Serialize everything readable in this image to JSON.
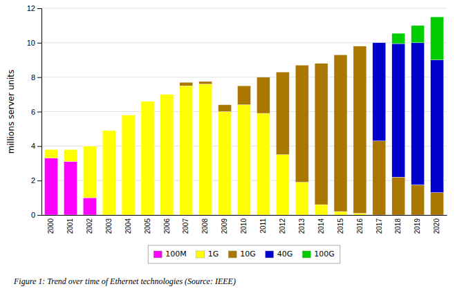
{
  "chart_data": {
    "type": "bar",
    "stacked": true,
    "ylabel": "millions server units",
    "caption": "Figure 1: Trend over time of Ethernet technologies (Source: IEEE)",
    "categories": [
      "2000",
      "2001",
      "2002",
      "2003",
      "2004",
      "2005",
      "2006",
      "2007",
      "2008",
      "2009",
      "2010",
      "2011",
      "2012",
      "2013",
      "2014",
      "2015",
      "2016",
      "2017",
      "2018",
      "2019",
      "2020"
    ],
    "series": [
      {
        "name": "100M",
        "color": "#FF00FF",
        "values": [
          3.3,
          3.1,
          1.0,
          0.0,
          0.0,
          0.0,
          0.0,
          0.0,
          0.0,
          0.0,
          0.0,
          0.0,
          0.0,
          0.0,
          0.0,
          0.0,
          0.0,
          0.0,
          0.0,
          0.0,
          0.0
        ]
      },
      {
        "name": "1G",
        "color": "#FFFF00",
        "values": [
          0.5,
          0.7,
          3.0,
          4.9,
          5.8,
          6.6,
          7.0,
          7.5,
          7.6,
          6.0,
          6.4,
          5.9,
          3.5,
          1.9,
          0.6,
          0.2,
          0.1,
          0.0,
          0.0,
          0.0,
          0.0
        ]
      },
      {
        "name": "10G",
        "color": "#AA7700",
        "values": [
          0.0,
          0.0,
          0.0,
          0.0,
          0.0,
          0.0,
          0.0,
          0.2,
          0.15,
          0.4,
          1.1,
          2.1,
          4.8,
          6.8,
          8.2,
          9.1,
          9.7,
          4.3,
          2.2,
          1.75,
          1.3
        ]
      },
      {
        "name": "40G",
        "color": "#0000CC",
        "values": [
          0.0,
          0.0,
          0.0,
          0.0,
          0.0,
          0.0,
          0.0,
          0.0,
          0.0,
          0.0,
          0.0,
          0.0,
          0.0,
          0.0,
          0.0,
          0.0,
          0.0,
          5.7,
          7.75,
          8.25,
          7.7
        ]
      },
      {
        "name": "100G",
        "color": "#00CC00",
        "values": [
          0.0,
          0.0,
          0.0,
          0.0,
          0.0,
          0.0,
          0.0,
          0.0,
          0.0,
          0.0,
          0.0,
          0.0,
          0.0,
          0.0,
          0.0,
          0.0,
          0.0,
          0.0,
          0.6,
          1.0,
          2.5
        ]
      }
    ],
    "ylim": [
      0,
      12
    ],
    "yticks": [
      0,
      2,
      4,
      6,
      8,
      10,
      12
    ],
    "grid": true,
    "legend": "bottom"
  }
}
